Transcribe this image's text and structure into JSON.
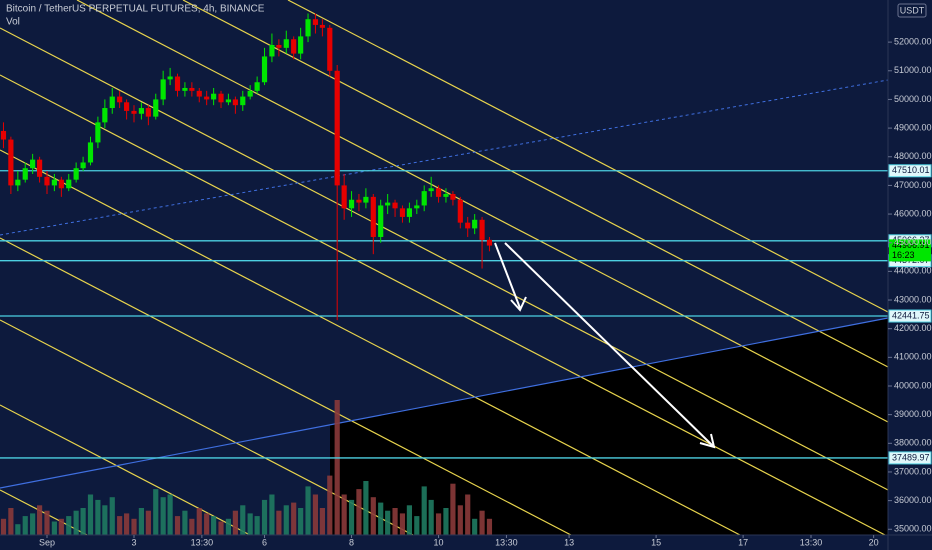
{
  "chart_data": {
    "type": "candlestick",
    "title": "Bitcoin / TetherUS PERPETUAL FUTURES, 4h, BINANCE",
    "indicator": "Vol",
    "currency": "USDT",
    "x": [
      0,
      0.17,
      0.33,
      0.5,
      0.67,
      0.83,
      1,
      1.17,
      1.33,
      1.5,
      1.67,
      1.83,
      2,
      2.17,
      2.33,
      2.5,
      2.67,
      2.83,
      3,
      3.17,
      3.33,
      3.5,
      3.67,
      3.83,
      4,
      4.17,
      4.33,
      4.5,
      4.67,
      4.83,
      5,
      5.17,
      5.33,
      5.5,
      5.67,
      5.83,
      6,
      6.17,
      6.33,
      6.5,
      6.67,
      6.83,
      7,
      7.17,
      7.33,
      7.5,
      7.67,
      7.83,
      8,
      8.17,
      8.33,
      8.5,
      8.67,
      8.83,
      9,
      9.17,
      9.33,
      9.5,
      9.67,
      9.83,
      10,
      10.17,
      10.33,
      10.5,
      10.67,
      10.83,
      11,
      11.17
    ],
    "open": [
      48900,
      48600,
      47000,
      47200,
      47600,
      47900,
      47300,
      47000,
      47200,
      46900,
      47200,
      47600,
      47800,
      48500,
      49200,
      49700,
      50100,
      49900,
      49600,
      49500,
      49700,
      49400,
      50000,
      50700,
      50800,
      50300,
      50400,
      50300,
      50100,
      50000,
      50200,
      49900,
      50000,
      49800,
      50100,
      50300,
      50600,
      51500,
      51900,
      51800,
      52100,
      51600,
      52200,
      52800,
      52600,
      52500,
      51000,
      47000,
      46200,
      46500,
      46400,
      46600,
      45200,
      46300,
      46400,
      46200,
      45900,
      46200,
      46300,
      46800,
      46900,
      46600,
      46700,
      46500,
      45700,
      45500,
      45800,
      45100
    ],
    "high": [
      49200,
      48700,
      47500,
      47800,
      48100,
      48000,
      47500,
      47400,
      47300,
      47400,
      47800,
      48000,
      48700,
      49400,
      50000,
      50400,
      50300,
      50000,
      49800,
      49900,
      49800,
      50200,
      51000,
      51100,
      50900,
      50600,
      50600,
      50400,
      50300,
      50400,
      50300,
      50200,
      50100,
      50300,
      50500,
      50800,
      51800,
      52300,
      52100,
      52400,
      52200,
      52500,
      53000,
      53000,
      52800,
      52600,
      51200,
      47400,
      46800,
      46700,
      46900,
      46700,
      46500,
      46700,
      46500,
      46300,
      46400,
      46500,
      47000,
      47300,
      47000,
      46900,
      46800,
      46600,
      45900,
      46000,
      45900,
      45200
    ],
    "low": [
      48300,
      46700,
      46800,
      47100,
      47400,
      47100,
      46700,
      46800,
      46600,
      46800,
      47100,
      47500,
      47700,
      48300,
      49000,
      49500,
      49700,
      49300,
      49200,
      49300,
      49100,
      49300,
      49800,
      50500,
      50100,
      50100,
      50100,
      49900,
      49800,
      49800,
      49700,
      49800,
      49500,
      49600,
      50000,
      50200,
      50500,
      51300,
      51500,
      51600,
      51400,
      51400,
      52000,
      52300,
      52200,
      50800,
      42300,
      45800,
      45900,
      46100,
      46200,
      44600,
      45000,
      46000,
      45900,
      45700,
      45700,
      46000,
      46100,
      46600,
      46400,
      46400,
      46300,
      45500,
      45200,
      45300,
      44100,
      44700
    ],
    "close": [
      48600,
      47000,
      47200,
      47600,
      47900,
      47300,
      47000,
      47200,
      46900,
      47200,
      47600,
      47800,
      48500,
      49200,
      49700,
      50100,
      49900,
      49600,
      49500,
      49700,
      49400,
      50000,
      50700,
      50800,
      50300,
      50400,
      50300,
      50100,
      50000,
      50200,
      49900,
      50000,
      49800,
      50100,
      50300,
      50600,
      51500,
      51900,
      51800,
      52100,
      51600,
      52200,
      52800,
      52600,
      52500,
      51000,
      47000,
      46200,
      46500,
      46400,
      46600,
      45200,
      46300,
      46400,
      46200,
      45900,
      46200,
      46300,
      46800,
      46900,
      46600,
      46700,
      46500,
      45700,
      45500,
      45800,
      45100,
      44900
    ],
    "volume": [
      12,
      20,
      8,
      14,
      16,
      22,
      18,
      10,
      12,
      14,
      18,
      20,
      30,
      26,
      22,
      28,
      14,
      16,
      12,
      20,
      18,
      34,
      28,
      30,
      14,
      18,
      12,
      20,
      16,
      14,
      10,
      12,
      18,
      22,
      16,
      14,
      26,
      30,
      18,
      22,
      24,
      20,
      36,
      30,
      20,
      44,
      100,
      30,
      26,
      34,
      40,
      28,
      24,
      18,
      20,
      16,
      22,
      14,
      36,
      26,
      16,
      20,
      38,
      22,
      30,
      12,
      18,
      12
    ],
    "up_color": "#00e600",
    "down_color": "#e60000",
    "xlim": [
      -0.08,
      20.33
    ],
    "xticks": [
      {
        "value": 1,
        "label": "Sep"
      },
      3,
      {
        "value": 4.56,
        "label": "13:30"
      },
      6,
      8,
      10,
      {
        "value": 11.56,
        "label": "13:30"
      },
      13,
      15,
      17,
      {
        "value": 18.56,
        "label": "13:30"
      },
      20
    ],
    "ylim": [
      34800,
      53470
    ],
    "yticks": [
      {
        "value": 52000,
        "label": "52000.00"
      },
      {
        "value": 51000,
        "label": "51000.00"
      },
      {
        "value": 50000,
        "label": "50000.00"
      },
      {
        "value": 49000,
        "label": "49000.00"
      },
      {
        "value": 48000,
        "label": "48000.00"
      },
      {
        "value": 47000,
        "label": "47000.00"
      },
      {
        "value": 46000,
        "label": "46000.00"
      },
      {
        "value": 45000,
        "label": "45000.00"
      },
      {
        "value": 44000,
        "label": "44000.00"
      },
      {
        "value": 43000,
        "label": "43000.00"
      },
      {
        "value": 42000,
        "label": "42000.00"
      },
      {
        "value": 41000,
        "label": "41000.00"
      },
      {
        "value": 40000,
        "label": "40000.00"
      },
      {
        "value": 39000,
        "label": "39000.00"
      },
      {
        "value": 38000,
        "label": "38000.00"
      },
      {
        "value": 37000,
        "label": "37000.00"
      },
      {
        "value": 36000,
        "label": "36000.00"
      },
      {
        "value": 35000,
        "label": "35000.00"
      }
    ],
    "levels": [
      47510.01,
      45066.27,
      44372.07,
      42441.75,
      37489.97
    ],
    "level_color": "#4dd0e1",
    "last_price": 44906.91,
    "countdown": "16:23"
  }
}
